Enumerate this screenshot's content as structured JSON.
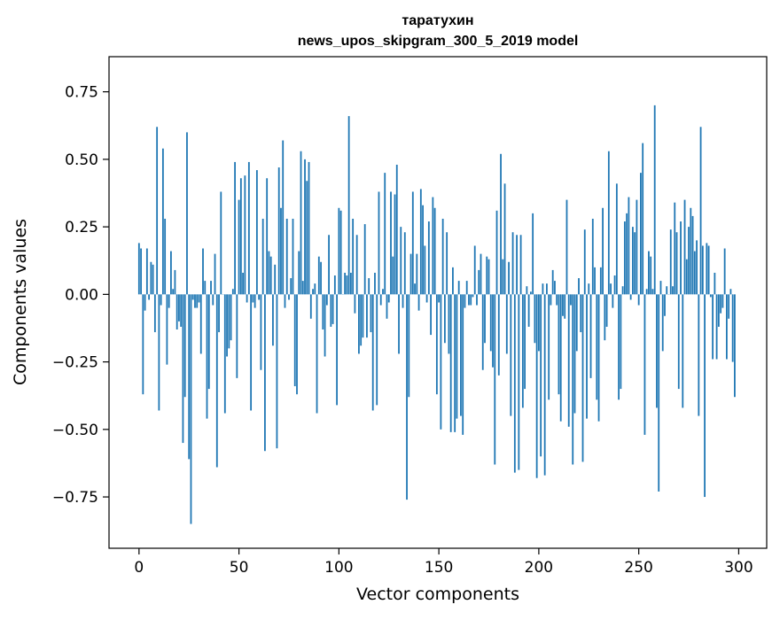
{
  "chart_data": {
    "type": "bar",
    "title": "таратухин",
    "subtitle": "news_upos_skipgram_300_5_2019 model",
    "xlabel": "Vector components",
    "ylabel": "Components values",
    "xlim": [
      -15,
      314
    ],
    "ylim": [
      -0.94,
      0.88
    ],
    "xticks": [
      0,
      50,
      100,
      150,
      200,
      250,
      300
    ],
    "xtick_labels": [
      "0",
      "50",
      "100",
      "150",
      "200",
      "250",
      "300"
    ],
    "yticks": [
      0.75,
      0.5,
      0.25,
      0.0,
      -0.25,
      -0.5,
      -0.75
    ],
    "ytick_labels": [
      "0.75",
      "0.50",
      "0.25",
      "0.00",
      "−0.25",
      "−0.50",
      "−0.75"
    ],
    "bar_color": "#1f77b4",
    "values": [
      0.19,
      0.17,
      -0.37,
      -0.06,
      0.17,
      -0.02,
      0.12,
      0.11,
      -0.14,
      0.62,
      -0.43,
      -0.04,
      0.54,
      0.28,
      -0.26,
      -0.05,
      0.16,
      0.02,
      0.09,
      -0.13,
      -0.1,
      -0.12,
      -0.55,
      -0.38,
      0.6,
      -0.61,
      -0.85,
      -0.02,
      -0.05,
      -0.05,
      -0.03,
      -0.22,
      0.17,
      0.05,
      -0.46,
      -0.35,
      0.05,
      -0.04,
      0.15,
      -0.64,
      -0.14,
      0.38,
      0.0,
      -0.44,
      -0.23,
      -0.2,
      -0.17,
      0.02,
      0.49,
      -0.31,
      0.35,
      0.43,
      0.08,
      0.44,
      -0.03,
      0.49,
      -0.43,
      -0.03,
      -0.05,
      0.46,
      -0.02,
      -0.28,
      0.28,
      -0.58,
      0.43,
      0.16,
      0.14,
      -0.19,
      0.11,
      -0.57,
      0.47,
      0.32,
      0.57,
      -0.05,
      0.28,
      -0.02,
      0.06,
      0.28,
      -0.34,
      -0.37,
      0.16,
      0.53,
      0.05,
      0.5,
      0.42,
      0.49,
      -0.09,
      0.02,
      0.04,
      -0.44,
      0.14,
      0.12,
      -0.13,
      -0.23,
      -0.04,
      0.22,
      -0.12,
      -0.11,
      0.07,
      -0.41,
      0.32,
      0.31,
      0.0,
      0.08,
      0.07,
      0.66,
      0.08,
      0.28,
      -0.07,
      0.22,
      -0.22,
      -0.19,
      -0.16,
      0.26,
      -0.16,
      0.06,
      -0.14,
      -0.43,
      0.08,
      -0.41,
      0.38,
      -0.04,
      0.02,
      0.45,
      -0.09,
      -0.03,
      0.38,
      0.14,
      0.37,
      0.48,
      -0.22,
      0.25,
      -0.05,
      0.23,
      -0.76,
      -0.38,
      0.15,
      0.38,
      0.04,
      0.15,
      -0.06,
      0.39,
      0.33,
      0.18,
      -0.03,
      0.27,
      -0.15,
      0.36,
      0.32,
      -0.37,
      -0.03,
      -0.5,
      0.28,
      -0.18,
      0.23,
      -0.22,
      -0.51,
      0.1,
      -0.51,
      -0.46,
      0.05,
      -0.45,
      -0.52,
      -0.05,
      0.05,
      -0.04,
      -0.04,
      -0.01,
      0.18,
      -0.04,
      0.09,
      0.15,
      -0.28,
      -0.18,
      0.14,
      0.13,
      -0.21,
      -0.27,
      -0.63,
      0.31,
      -0.3,
      0.52,
      0.13,
      0.41,
      -0.22,
      0.12,
      -0.45,
      0.23,
      -0.66,
      0.22,
      -0.65,
      0.22,
      -0.42,
      -0.35,
      0.03,
      -0.12,
      0.01,
      0.3,
      -0.18,
      -0.68,
      -0.21,
      -0.6,
      0.04,
      -0.67,
      0.04,
      -0.39,
      -0.04,
      0.09,
      0.05,
      -0.04,
      -0.37,
      -0.47,
      -0.08,
      -0.09,
      0.35,
      -0.49,
      -0.04,
      -0.63,
      -0.44,
      -0.21,
      0.06,
      -0.14,
      -0.62,
      0.24,
      -0.46,
      0.04,
      -0.31,
      0.28,
      0.1,
      -0.39,
      -0.47,
      0.1,
      0.32,
      -0.17,
      -0.12,
      0.53,
      0.04,
      -0.05,
      0.07,
      0.41,
      -0.39,
      -0.35,
      0.03,
      0.27,
      0.3,
      0.36,
      -0.02,
      0.25,
      0.23,
      0.35,
      -0.04,
      0.45,
      0.56,
      -0.52,
      0.02,
      0.16,
      0.14,
      0.02,
      0.7,
      -0.42,
      -0.73,
      0.05,
      -0.21,
      -0.08,
      0.03,
      0.0,
      0.24,
      0.03,
      0.34,
      0.23,
      -0.35,
      0.27,
      -0.42,
      0.35,
      0.13,
      0.25,
      0.32,
      0.29,
      0.16,
      0.2,
      -0.45,
      0.62,
      0.18,
      -0.75,
      0.19,
      0.18,
      -0.01,
      -0.24,
      0.08,
      -0.24,
      -0.12,
      -0.07,
      -0.05,
      0.17,
      -0.24,
      -0.09,
      0.02,
      -0.25,
      -0.38
    ]
  }
}
